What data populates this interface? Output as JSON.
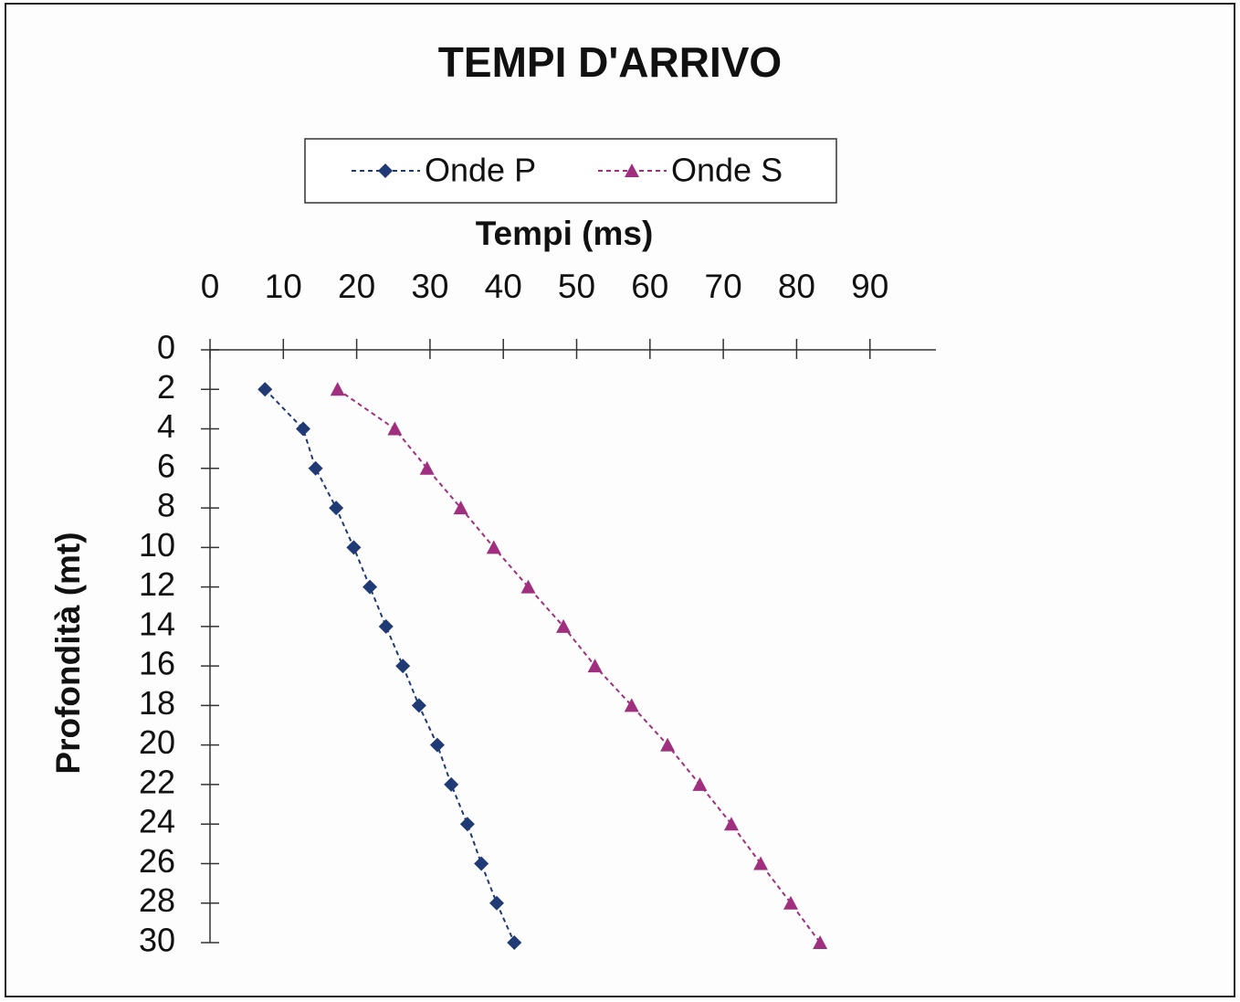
{
  "chart_data": {
    "type": "scatter",
    "title": "TEMPI D'ARRIVO",
    "x_label": "Tempi (ms)",
    "y_label": "Profondità (mt)",
    "y": [
      2,
      4,
      6,
      8,
      10,
      12,
      14,
      16,
      18,
      20,
      22,
      24,
      26,
      28,
      30
    ],
    "series": [
      {
        "name": "Onde P",
        "color": "#1f3a75",
        "marker": "diamond",
        "x": [
          7.5,
          12.7,
          14.4,
          17.2,
          19.6,
          21.8,
          24.0,
          26.3,
          28.5,
          31.0,
          32.9,
          35.1,
          37.0,
          39.1,
          41.5
        ]
      },
      {
        "name": "Onde S",
        "color": "#a0307f",
        "marker": "triangle",
        "x": [
          17.4,
          25.2,
          29.6,
          34.2,
          38.7,
          43.4,
          48.2,
          52.5,
          57.5,
          62.4,
          66.8,
          71.1,
          75.1,
          79.2,
          83.2
        ]
      }
    ],
    "xlim": [
      0,
      99
    ],
    "xticks": [
      0,
      10,
      20,
      30,
      40,
      50,
      60,
      70,
      80,
      90
    ],
    "ylim": [
      0,
      30
    ],
    "yticks": [
      0,
      2,
      4,
      6,
      8,
      10,
      12,
      14,
      16,
      18,
      20,
      22,
      24,
      26,
      28,
      30
    ],
    "y_inverted": true,
    "x_axis_position": "top",
    "legend": "top",
    "grid": false
  }
}
